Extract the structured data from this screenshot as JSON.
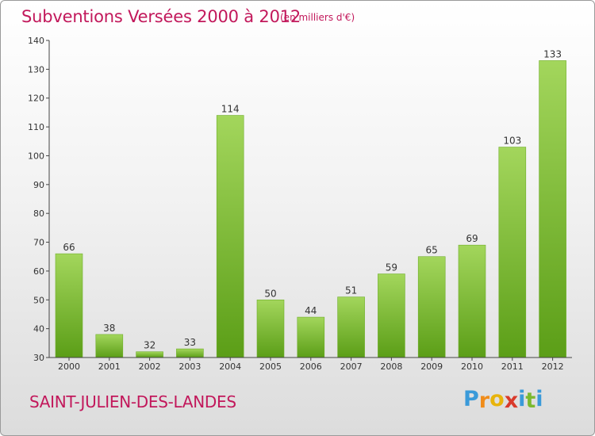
{
  "header": {
    "title": "Subventions Versées 2000 à 2012",
    "unit_note": "(en milliers d'€)"
  },
  "footer": {
    "commune": "SAINT-JULIEN-DES-LANDES",
    "logo_letters": [
      "P",
      "r",
      "o",
      "x",
      "i",
      "t",
      "i"
    ],
    "logo_colors": [
      "#3a9ad9",
      "#f08c1a",
      "#e8b40c",
      "#d93a2b",
      "#3a9ad9",
      "#7bb92f",
      "#3a9ad9"
    ]
  },
  "colors": {
    "title": "#c2185b",
    "bar_top": "#a3d65c",
    "bar_bottom": "#5b9e17",
    "axis": "#444444"
  },
  "chart_data": {
    "type": "bar",
    "title": "Subventions Versées 2000 à 2012",
    "subtitle": "(en milliers d'€)",
    "categories": [
      "2000",
      "2001",
      "2002",
      "2003",
      "2004",
      "2005",
      "2006",
      "2007",
      "2008",
      "2009",
      "2010",
      "2011",
      "2012"
    ],
    "values": [
      66,
      38,
      32,
      33,
      114,
      50,
      44,
      51,
      59,
      65,
      69,
      103,
      133
    ],
    "ylim": [
      30,
      140
    ],
    "yticks": [
      30,
      40,
      50,
      60,
      70,
      80,
      90,
      100,
      110,
      120,
      130,
      140
    ],
    "grid": false,
    "data_labels": true
  }
}
